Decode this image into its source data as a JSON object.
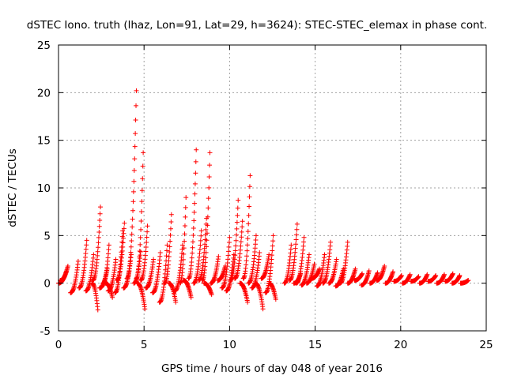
{
  "chart_data": {
    "type": "scatter",
    "title": "dSTEC Iono. truth (lhaz, Lon=91, Lat=29, h=3624): STEC-STEC_elemax in phase cont.",
    "xlabel": "GPS time / hours of day 048 of year 2016",
    "ylabel": "dSTEC  / TECUs",
    "xlim": [
      0,
      25
    ],
    "ylim": [
      -5,
      25
    ],
    "xticks": [
      0,
      5,
      10,
      15,
      20,
      25
    ],
    "yticks": [
      -5,
      0,
      5,
      10,
      15,
      20,
      25
    ],
    "grid": true,
    "marker": "+",
    "color": "#ff0000",
    "arcs": [
      {
        "t0": 0.0,
        "t1": 0.45,
        "start": 0.0,
        "end": 1.2
      },
      {
        "t0": 0.1,
        "t1": 0.55,
        "start": 0.3,
        "end": 1.8
      },
      {
        "t0": 0.7,
        "t1": 1.15,
        "start": -1.0,
        "end": 2.3
      },
      {
        "t0": 1.2,
        "t1": 1.65,
        "start": -0.5,
        "end": 4.5
      },
      {
        "t0": 1.6,
        "t1": 2.05,
        "start": -0.8,
        "end": 3.0
      },
      {
        "t0": 1.95,
        "t1": 2.3,
        "start": 0.0,
        "end": -2.8
      },
      {
        "t0": 2.0,
        "t1": 2.45,
        "start": 0.3,
        "end": 8.0
      },
      {
        "t0": 2.4,
        "t1": 2.85,
        "start": -0.5,
        "end": 1.5
      },
      {
        "t0": 2.6,
        "t1": 2.95,
        "start": 0.0,
        "end": 4.0
      },
      {
        "t0": 2.75,
        "t1": 3.15,
        "start": 0.0,
        "end": -1.5
      },
      {
        "t0": 2.9,
        "t1": 3.35,
        "start": -0.8,
        "end": 2.5
      },
      {
        "t0": 3.3,
        "t1": 3.75,
        "start": -1.0,
        "end": 5.5
      },
      {
        "t0": 3.4,
        "t1": 3.85,
        "start": 0.3,
        "end": 6.3
      },
      {
        "t0": 3.8,
        "t1": 4.25,
        "start": -0.5,
        "end": 3.0
      },
      {
        "t0": 4.0,
        "t1": 4.55,
        "start": 0.5,
        "end": 20.2
      },
      {
        "t0": 4.4,
        "t1": 4.8,
        "start": 0.0,
        "end": 3.3
      },
      {
        "t0": 4.55,
        "t1": 4.95,
        "start": 0.5,
        "end": 13.7
      },
      {
        "t0": 4.6,
        "t1": 5.05,
        "start": 0.0,
        "end": -2.7
      },
      {
        "t0": 4.8,
        "t1": 5.2,
        "start": 0.3,
        "end": 6.0
      },
      {
        "t0": 5.1,
        "t1": 5.55,
        "start": -0.5,
        "end": 2.5
      },
      {
        "t0": 5.5,
        "t1": 5.95,
        "start": -1.0,
        "end": 3.2
      },
      {
        "t0": 5.9,
        "t1": 6.35,
        "start": -2.0,
        "end": 4.0
      },
      {
        "t0": 6.2,
        "t1": 6.6,
        "start": 0.0,
        "end": 7.2
      },
      {
        "t0": 6.45,
        "t1": 6.85,
        "start": 0.0,
        "end": -2.0
      },
      {
        "t0": 6.8,
        "t1": 7.25,
        "start": -0.8,
        "end": 4.0
      },
      {
        "t0": 7.1,
        "t1": 7.45,
        "start": 0.0,
        "end": 9.0
      },
      {
        "t0": 7.3,
        "t1": 7.75,
        "start": 0.3,
        "end": -1.5
      },
      {
        "t0": 7.6,
        "t1": 8.05,
        "start": 0.5,
        "end": 14.0
      },
      {
        "t0": 7.9,
        "t1": 8.35,
        "start": 0.0,
        "end": 5.5
      },
      {
        "t0": 8.2,
        "t1": 8.65,
        "start": 0.3,
        "end": 6.8
      },
      {
        "t0": 8.4,
        "t1": 8.85,
        "start": 0.3,
        "end": 13.7
      },
      {
        "t0": 8.5,
        "t1": 8.95,
        "start": 0.0,
        "end": -1.2
      },
      {
        "t0": 8.9,
        "t1": 9.35,
        "start": 0.0,
        "end": 2.8
      },
      {
        "t0": 9.3,
        "t1": 9.75,
        "start": 0.3,
        "end": 1.8
      },
      {
        "t0": 9.55,
        "t1": 10.0,
        "start": -0.5,
        "end": 4.8
      },
      {
        "t0": 9.8,
        "t1": 10.25,
        "start": -0.8,
        "end": 3.0
      },
      {
        "t0": 10.05,
        "t1": 10.5,
        "start": 0.3,
        "end": 8.7
      },
      {
        "t0": 10.3,
        "t1": 10.75,
        "start": 0.5,
        "end": 6.5
      },
      {
        "t0": 10.6,
        "t1": 11.05,
        "start": 0.0,
        "end": -2.0
      },
      {
        "t0": 10.8,
        "t1": 11.2,
        "start": 0.5,
        "end": 11.3
      },
      {
        "t0": 11.1,
        "t1": 11.55,
        "start": 0.0,
        "end": 5.0
      },
      {
        "t0": 11.3,
        "t1": 11.75,
        "start": -0.5,
        "end": 3.2
      },
      {
        "t0": 11.5,
        "t1": 11.95,
        "start": 0.0,
        "end": -2.7
      },
      {
        "t0": 11.85,
        "t1": 12.3,
        "start": 0.5,
        "end": 3.0
      },
      {
        "t0": 12.1,
        "t1": 12.55,
        "start": -1.0,
        "end": 5.0
      },
      {
        "t0": 12.3,
        "t1": 12.7,
        "start": 0.0,
        "end": -1.7
      },
      {
        "t0": 13.2,
        "t1": 13.6,
        "start": 0.0,
        "end": 4.0
      },
      {
        "t0": 13.5,
        "t1": 13.95,
        "start": 0.3,
        "end": 6.2
      },
      {
        "t0": 13.75,
        "t1": 14.15,
        "start": 0.0,
        "end": 1.0
      },
      {
        "t0": 13.9,
        "t1": 14.35,
        "start": 0.0,
        "end": 4.8
      },
      {
        "t0": 14.2,
        "t1": 14.65,
        "start": -0.2,
        "end": 3.0
      },
      {
        "t0": 14.5,
        "t1": 14.95,
        "start": 0.0,
        "end": 2.0
      },
      {
        "t0": 14.8,
        "t1": 15.25,
        "start": 0.5,
        "end": 1.5
      },
      {
        "t0": 15.1,
        "t1": 15.55,
        "start": -0.3,
        "end": 3.0
      },
      {
        "t0": 15.45,
        "t1": 15.9,
        "start": 0.0,
        "end": 4.3
      },
      {
        "t0": 15.8,
        "t1": 16.25,
        "start": 0.0,
        "end": 2.5
      },
      {
        "t0": 16.2,
        "t1": 16.65,
        "start": -0.3,
        "end": 1.5
      },
      {
        "t0": 16.45,
        "t1": 16.9,
        "start": 0.0,
        "end": 4.3
      },
      {
        "t0": 16.9,
        "t1": 17.35,
        "start": 0.0,
        "end": 1.5
      },
      {
        "t0": 17.3,
        "t1": 17.75,
        "start": 0.3,
        "end": 1.0
      },
      {
        "t0": 17.7,
        "t1": 18.15,
        "start": -0.2,
        "end": 1.3
      },
      {
        "t0": 18.2,
        "t1": 18.65,
        "start": 0.0,
        "end": 1.1
      },
      {
        "t0": 18.6,
        "t1": 19.05,
        "start": 0.3,
        "end": 1.8
      },
      {
        "t0": 19.1,
        "t1": 19.55,
        "start": 0.0,
        "end": 1.2
      },
      {
        "t0": 19.6,
        "t1": 20.05,
        "start": 0.2,
        "end": 0.8
      },
      {
        "t0": 20.1,
        "t1": 20.55,
        "start": 0.0,
        "end": 0.9
      },
      {
        "t0": 20.6,
        "t1": 21.05,
        "start": 0.2,
        "end": 0.7
      },
      {
        "t0": 21.1,
        "t1": 21.55,
        "start": 0.0,
        "end": 0.9
      },
      {
        "t0": 21.6,
        "t1": 22.05,
        "start": 0.2,
        "end": 0.8
      },
      {
        "t0": 22.1,
        "t1": 22.55,
        "start": 0.0,
        "end": 0.9
      },
      {
        "t0": 22.6,
        "t1": 23.05,
        "start": 0.2,
        "end": 1.0
      },
      {
        "t0": 23.0,
        "t1": 23.45,
        "start": 0.0,
        "end": 0.8
      },
      {
        "t0": 23.5,
        "t1": 23.95,
        "start": 0.0,
        "end": 0.3
      }
    ]
  }
}
